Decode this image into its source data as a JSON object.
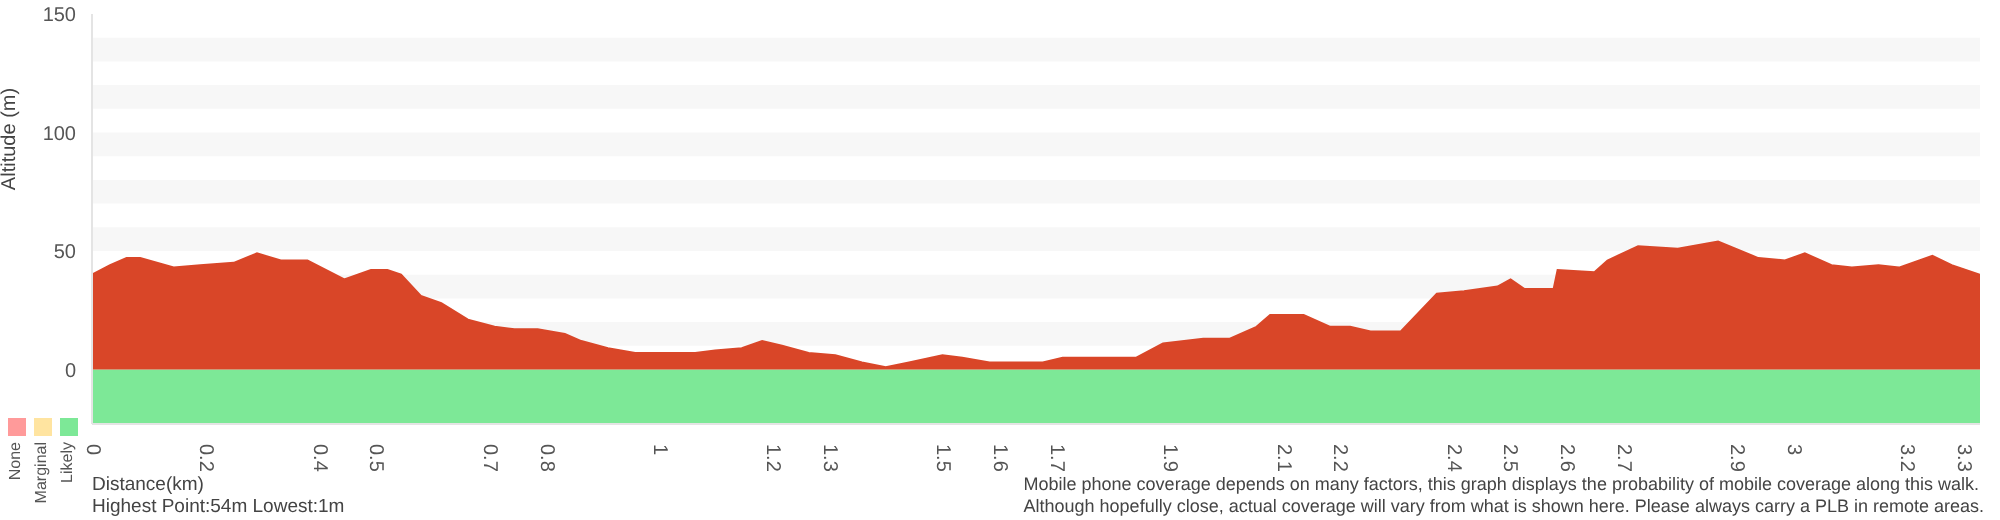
{
  "chart_data": {
    "type": "area",
    "ylabel": "Altitude (m)",
    "x": [
      0,
      0.032,
      0.061,
      0.085,
      0.144,
      0.191,
      0.25,
      0.291,
      0.333,
      0.38,
      0.445,
      0.492,
      0.521,
      0.545,
      0.58,
      0.616,
      0.663,
      0.71,
      0.745,
      0.786,
      0.834,
      0.863,
      0.91,
      0.958,
      1.016,
      1.064,
      1.099,
      1.146,
      1.182,
      1.217,
      1.264,
      1.311,
      1.358,
      1.4,
      1.441,
      1.5,
      1.535,
      1.583,
      1.63,
      1.677,
      1.712,
      1.771,
      1.842,
      1.889,
      1.96,
      2.007,
      2.054,
      2.078,
      2.137,
      2.184,
      2.219,
      2.255,
      2.308,
      2.372,
      2.42,
      2.479,
      2.502,
      2.526,
      2.578,
      2.585,
      2.65,
      2.673,
      2.727,
      2.797,
      2.868,
      2.939,
      2.986,
      3.021,
      3.068,
      3.104,
      3.151,
      3.187,
      3.246,
      3.28,
      3.33
    ],
    "series": [
      {
        "color": "#d94628",
        "values": [
          40,
          44,
          47,
          47,
          43,
          44,
          45,
          49,
          46,
          46,
          38,
          42,
          42,
          40,
          31,
          28,
          21,
          18,
          17,
          17,
          15,
          12,
          9,
          7,
          7,
          7,
          8,
          9,
          12,
          10,
          7,
          6,
          3,
          1,
          3,
          6,
          5,
          3,
          3,
          3,
          5,
          5,
          5,
          11,
          13,
          13,
          18,
          23,
          23,
          18,
          18,
          16,
          16,
          32,
          33,
          35,
          38,
          34,
          34,
          42,
          41,
          46,
          52,
          51,
          54,
          47,
          46,
          49,
          44,
          43,
          44,
          43,
          48,
          44,
          40
        ]
      }
    ],
    "xlim": [
      0,
      3.33
    ],
    "xticks": [
      0,
      0.2,
      0.4,
      0.5,
      0.7,
      0.8,
      1,
      1.2,
      1.3,
      1.5,
      1.6,
      1.7,
      1.9,
      2.1,
      2.2,
      2.4,
      2.5,
      2.6,
      2.7,
      2.9,
      3,
      3.2,
      3.3
    ],
    "ylim": [
      -23,
      150
    ],
    "yticks": [
      0,
      50,
      100,
      150
    ],
    "bands": [
      {
        "axis": "y",
        "from": -23,
        "to": 0,
        "color": "#7de897"
      },
      {
        "axis": "y",
        "from": 10,
        "to": 20,
        "color": "#f7f7f7"
      },
      {
        "axis": "y",
        "from": 30,
        "to": 40,
        "color": "#f7f7f7"
      },
      {
        "axis": "y",
        "from": 50,
        "to": 60,
        "color": "#f7f7f7"
      },
      {
        "axis": "y",
        "from": 70,
        "to": 80,
        "color": "#f7f7f7"
      },
      {
        "axis": "y",
        "from": 90,
        "to": 100,
        "color": "#f7f7f7"
      },
      {
        "axis": "y",
        "from": 110,
        "to": 120,
        "color": "#f7f7f7"
      },
      {
        "axis": "y",
        "from": 130,
        "to": 140,
        "color": "#f7f7f7"
      }
    ],
    "annotations": [
      "None",
      "Marginal",
      "Likely",
      "Distance(km)",
      "Highest Point:54m Lowest:1m",
      "Mobile phone coverage depends on many factors, this graph displays the probability of mobile coverage along this walk.",
      "Although hopefully close, actual coverage will vary from what is shown here. Please always carry a PLB in remote areas."
    ]
  }
}
